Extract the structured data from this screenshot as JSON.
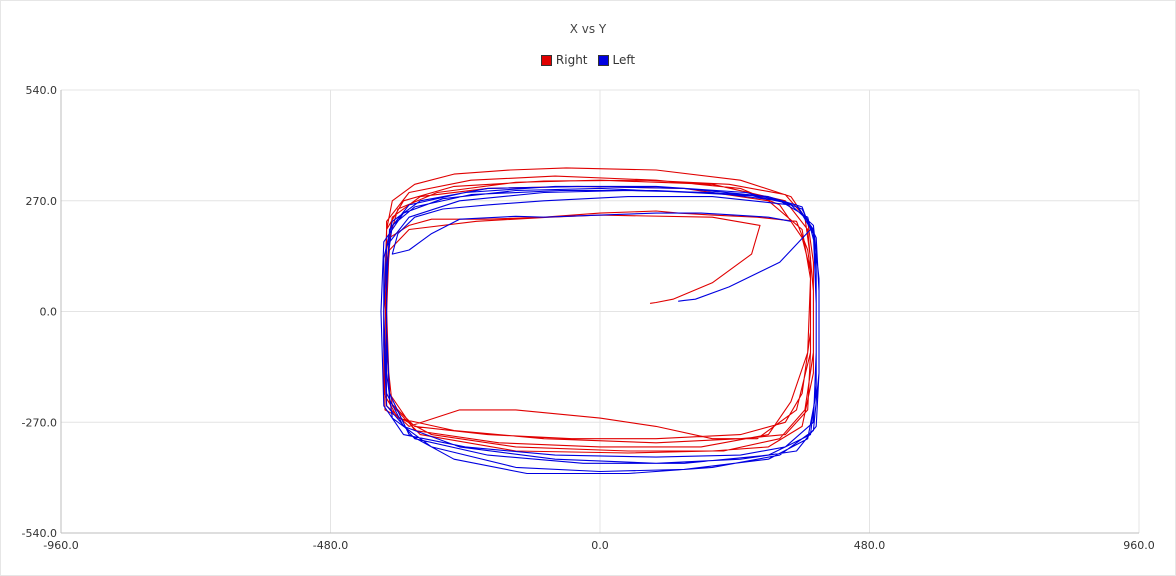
{
  "chart_data": {
    "type": "line",
    "title": "X vs Y",
    "xlabel": "",
    "ylabel": "",
    "xlim": [
      -960,
      960
    ],
    "ylim": [
      -540,
      540
    ],
    "x_ticks": [
      "-960.0",
      "-480.0",
      "0.0",
      "480.0",
      "960.0"
    ],
    "y_ticks": [
      "540.0",
      "270.0",
      "0.0",
      "-270.0",
      "-540.0"
    ],
    "x_tick_values": [
      -960,
      -480,
      0,
      480,
      960
    ],
    "y_tick_values": [
      540,
      270,
      0,
      -270,
      -540
    ],
    "grid": true,
    "legend_position": "top-center",
    "series": [
      {
        "name": "Right",
        "color": "#e00000",
        "points": [
          [
            90,
            20
          ],
          [
            100,
            22
          ],
          [
            130,
            30
          ],
          [
            200,
            70
          ],
          [
            270,
            140
          ],
          [
            285,
            210
          ],
          [
            200,
            230
          ],
          [
            0,
            235
          ],
          [
            -90,
            230
          ],
          [
            -220,
            220
          ],
          [
            -340,
            200
          ],
          [
            -375,
            150
          ],
          [
            -385,
            0
          ],
          [
            -385,
            -200
          ],
          [
            -360,
            -260
          ],
          [
            -260,
            -290
          ],
          [
            -100,
            -310
          ],
          [
            100,
            -320
          ],
          [
            250,
            -310
          ],
          [
            330,
            -300
          ],
          [
            370,
            -240
          ],
          [
            375,
            -100
          ],
          [
            375,
            100
          ],
          [
            360,
            180
          ],
          [
            320,
            260
          ],
          [
            250,
            300
          ],
          [
            100,
            320
          ],
          [
            -80,
            330
          ],
          [
            -230,
            320
          ],
          [
            -340,
            290
          ],
          [
            -380,
            220
          ],
          [
            -380,
            100
          ],
          [
            -380,
            -100
          ],
          [
            -370,
            -230
          ],
          [
            -320,
            -300
          ],
          [
            -150,
            -340
          ],
          [
            50,
            -345
          ],
          [
            200,
            -340
          ],
          [
            300,
            -330
          ],
          [
            360,
            -280
          ],
          [
            380,
            -150
          ],
          [
            380,
            50
          ],
          [
            370,
            200
          ],
          [
            330,
            270
          ],
          [
            200,
            310
          ],
          [
            0,
            320
          ],
          [
            -150,
            315
          ],
          [
            -290,
            290
          ],
          [
            -360,
            250
          ],
          [
            -375,
            180
          ],
          [
            -380,
            0
          ],
          [
            -375,
            -200
          ],
          [
            -330,
            -290
          ],
          [
            -180,
            -320
          ],
          [
            0,
            -330
          ],
          [
            180,
            -330
          ],
          [
            300,
            -300
          ],
          [
            340,
            -220
          ],
          [
            370,
            -100
          ],
          [
            375,
            80
          ],
          [
            360,
            200
          ],
          [
            300,
            270
          ],
          [
            150,
            300
          ],
          [
            -40,
            305
          ],
          [
            -200,
            300
          ],
          [
            -320,
            280
          ],
          [
            -370,
            230
          ],
          [
            -380,
            150
          ],
          [
            -380,
            -50
          ],
          [
            -375,
            -220
          ],
          [
            -330,
            -280
          ],
          [
            -200,
            -300
          ],
          [
            -50,
            -310
          ],
          [
            100,
            -310
          ],
          [
            250,
            -300
          ],
          [
            330,
            -270
          ],
          [
            360,
            -200
          ],
          [
            375,
            -50
          ],
          [
            375,
            130
          ],
          [
            365,
            230
          ],
          [
            330,
            285
          ],
          [
            230,
            310
          ],
          [
            80,
            320
          ],
          [
            -100,
            318
          ],
          [
            -260,
            305
          ],
          [
            -350,
            270
          ],
          [
            -380,
            200
          ],
          [
            -385,
            0
          ],
          [
            -383,
            -240
          ],
          [
            -300,
            -300
          ],
          [
            -150,
            -330
          ],
          [
            50,
            -340
          ],
          [
            220,
            -340
          ],
          [
            320,
            -310
          ],
          [
            365,
            -240
          ],
          [
            380,
            -100
          ],
          [
            380,
            120
          ],
          [
            370,
            220
          ],
          [
            340,
            280
          ],
          [
            250,
            320
          ],
          [
            100,
            345
          ],
          [
            -60,
            350
          ],
          [
            -160,
            345
          ],
          [
            -260,
            335
          ],
          [
            -330,
            310
          ],
          [
            -370,
            270
          ],
          [
            -380,
            200
          ],
          [
            -382,
            0
          ],
          [
            -380,
            -230
          ],
          [
            -340,
            -280
          ],
          [
            -250,
            -240
          ],
          [
            -150,
            -240
          ],
          [
            0,
            -260
          ],
          [
            100,
            -280
          ],
          [
            200,
            -310
          ],
          [
            280,
            -310
          ],
          [
            350,
            -240
          ],
          [
            375,
            -100
          ],
          [
            375,
            100
          ],
          [
            370,
            150
          ],
          [
            350,
            220
          ],
          [
            280,
            230
          ],
          [
            200,
            235
          ],
          [
            140,
            240
          ],
          [
            100,
            245
          ],
          [
            0,
            240
          ],
          [
            -100,
            230
          ],
          [
            -200,
            225
          ],
          [
            -300,
            225
          ],
          [
            -340,
            210
          ],
          [
            -375,
            180
          ],
          [
            -380,
            100
          ],
          [
            -381,
            0
          ]
        ]
      },
      {
        "name": "Left",
        "color": "#0000e0",
        "points": [
          [
            140,
            25
          ],
          [
            150,
            27
          ],
          [
            170,
            30
          ],
          [
            230,
            60
          ],
          [
            320,
            120
          ],
          [
            375,
            200
          ],
          [
            360,
            255
          ],
          [
            300,
            280
          ],
          [
            160,
            290
          ],
          [
            0,
            300
          ],
          [
            -150,
            295
          ],
          [
            -280,
            275
          ],
          [
            -350,
            240
          ],
          [
            -385,
            170
          ],
          [
            -390,
            0
          ],
          [
            -385,
            -230
          ],
          [
            -350,
            -300
          ],
          [
            -240,
            -330
          ],
          [
            -80,
            -350
          ],
          [
            100,
            -355
          ],
          [
            250,
            -350
          ],
          [
            330,
            -330
          ],
          [
            380,
            -270
          ],
          [
            385,
            -100
          ],
          [
            385,
            100
          ],
          [
            380,
            200
          ],
          [
            350,
            260
          ],
          [
            260,
            290
          ],
          [
            100,
            305
          ],
          [
            -80,
            305
          ],
          [
            -240,
            290
          ],
          [
            -340,
            260
          ],
          [
            -375,
            200
          ],
          [
            -380,
            50
          ],
          [
            -380,
            -150
          ],
          [
            -370,
            -260
          ],
          [
            -300,
            -330
          ],
          [
            -150,
            -380
          ],
          [
            0,
            -390
          ],
          [
            150,
            -385
          ],
          [
            300,
            -360
          ],
          [
            370,
            -310
          ],
          [
            385,
            -200
          ],
          [
            385,
            0
          ],
          [
            385,
            150
          ],
          [
            370,
            230
          ],
          [
            320,
            270
          ],
          [
            200,
            290
          ],
          [
            50,
            295
          ],
          [
            -100,
            290
          ],
          [
            -250,
            270
          ],
          [
            -340,
            230
          ],
          [
            -380,
            160
          ],
          [
            -385,
            0
          ],
          [
            -380,
            -200
          ],
          [
            -350,
            -280
          ],
          [
            -250,
            -330
          ],
          [
            -80,
            -360
          ],
          [
            100,
            -370
          ],
          [
            250,
            -360
          ],
          [
            350,
            -340
          ],
          [
            385,
            -280
          ],
          [
            390,
            -150
          ],
          [
            390,
            50
          ],
          [
            385,
            180
          ],
          [
            360,
            250
          ],
          [
            300,
            280
          ],
          [
            150,
            300
          ],
          [
            -30,
            305
          ],
          [
            -200,
            300
          ],
          [
            -320,
            270
          ],
          [
            -370,
            220
          ],
          [
            -385,
            130
          ],
          [
            -385,
            -80
          ],
          [
            -380,
            -230
          ],
          [
            -330,
            -310
          ],
          [
            -200,
            -350
          ],
          [
            -30,
            -370
          ],
          [
            150,
            -370
          ],
          [
            300,
            -350
          ],
          [
            375,
            -300
          ],
          [
            385,
            -180
          ],
          [
            385,
            20
          ],
          [
            380,
            190
          ],
          [
            350,
            260
          ],
          [
            260,
            285
          ],
          [
            100,
            295
          ],
          [
            -70,
            295
          ],
          [
            -230,
            285
          ],
          [
            -330,
            255
          ],
          [
            -370,
            210
          ],
          [
            -380,
            110
          ],
          [
            -380,
            -50
          ],
          [
            -375,
            -200
          ],
          [
            -340,
            -300
          ],
          [
            -260,
            -360
          ],
          [
            -130,
            -395
          ],
          [
            50,
            -395
          ],
          [
            200,
            -380
          ],
          [
            320,
            -350
          ],
          [
            380,
            -290
          ],
          [
            390,
            -150
          ],
          [
            390,
            80
          ],
          [
            380,
            210
          ],
          [
            340,
            260
          ],
          [
            200,
            280
          ],
          [
            50,
            280
          ],
          [
            -100,
            270
          ],
          [
            -200,
            260
          ],
          [
            -280,
            250
          ],
          [
            -330,
            230
          ],
          [
            -360,
            190
          ],
          [
            -370,
            140
          ],
          [
            -340,
            150
          ],
          [
            -320,
            170
          ],
          [
            -300,
            190
          ],
          [
            -250,
            225
          ],
          [
            -150,
            232
          ],
          [
            -100,
            230
          ],
          [
            0,
            235
          ],
          [
            100,
            240
          ],
          [
            180,
            240
          ],
          [
            240,
            235
          ],
          [
            300,
            230
          ],
          [
            340,
            220
          ]
        ]
      }
    ]
  }
}
